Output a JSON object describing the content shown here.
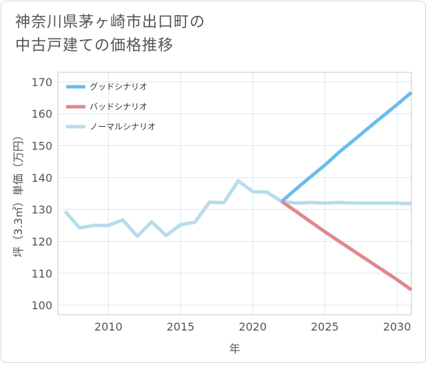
{
  "title": {
    "line1": "神奈川県茅ヶ崎市出口町の",
    "line2": "中古戸建ての価格推移"
  },
  "chart_data": {
    "type": "line",
    "title": "神奈川県茅ヶ崎市出口町の中古戸建ての価格推移",
    "xlabel": "年",
    "ylabel": "坪（3.3㎡）単価（万円）",
    "xlim": [
      2006.5,
      2031
    ],
    "ylim": [
      97,
      173
    ],
    "x_ticks": [
      2010,
      2015,
      2020,
      2025,
      2030
    ],
    "y_ticks": [
      100,
      110,
      120,
      130,
      140,
      150,
      160,
      170
    ],
    "grid": true,
    "legend_position": "top-left",
    "series": [
      {
        "name": "グッドシナリオ",
        "color": "#6cbcec",
        "x": [
          2022,
          2023,
          2024,
          2025,
          2026,
          2027,
          2028,
          2029,
          2030,
          2031
        ],
        "y": [
          132.5,
          136.4,
          140.2,
          143.9,
          148.0,
          151.7,
          155.5,
          159.2,
          162.9,
          166.7
        ]
      },
      {
        "name": "バッドシナリオ",
        "color": "#e0878e",
        "x": [
          2022,
          2023,
          2024,
          2025,
          2026,
          2027,
          2028,
          2029,
          2030,
          2031
        ],
        "y": [
          132.5,
          129.4,
          126.2,
          123.0,
          120.0,
          117.0,
          114.0,
          111.0,
          108.0,
          104.8
        ]
      },
      {
        "name": "ノーマルシナリオ",
        "color": "#b8dcec",
        "x": [
          2007,
          2008,
          2009,
          2010,
          2011,
          2012,
          2013,
          2014,
          2015,
          2016,
          2017,
          2018,
          2019,
          2020,
          2021,
          2022,
          2023,
          2024,
          2025,
          2026,
          2027,
          2028,
          2029,
          2030,
          2031
        ],
        "y": [
          129.4,
          124.2,
          125.0,
          125.0,
          126.7,
          121.6,
          126.1,
          121.8,
          125.2,
          126.0,
          132.3,
          132.1,
          139.0,
          135.6,
          135.4,
          132.5,
          132.0,
          132.2,
          132.0,
          132.2,
          132.0,
          132.0,
          132.0,
          132.0,
          131.8
        ]
      }
    ]
  }
}
